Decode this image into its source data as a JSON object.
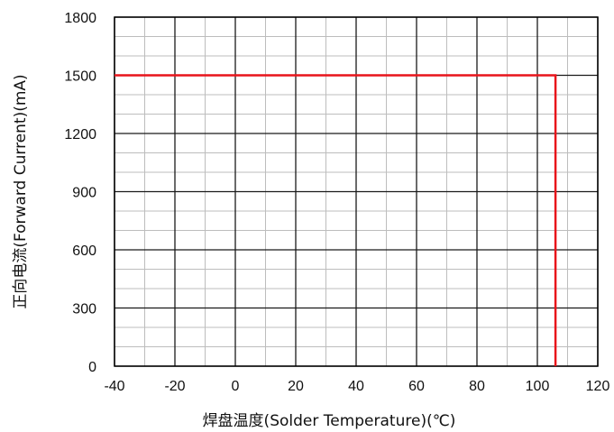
{
  "chart_data": {
    "type": "line",
    "xlabel": "焊盘温度(Solder Temperature)(℃)",
    "ylabel": "正向电流(Forward Current)(mA)",
    "xlim": [
      -40,
      120
    ],
    "ylim": [
      0,
      1800
    ],
    "x_ticks": [
      -40,
      -20,
      0,
      20,
      40,
      60,
      80,
      100,
      120
    ],
    "y_ticks": [
      0,
      300,
      600,
      900,
      1200,
      1500,
      1800
    ],
    "x_tick_labels": [
      "-40",
      "-20",
      "0",
      "20",
      "40",
      "60",
      "80",
      "100",
      "120"
    ],
    "y_tick_labels": [
      "0",
      "300",
      "600",
      "900",
      "1200",
      "1500",
      "1800"
    ],
    "grid": true,
    "x_minor_step": 10,
    "y_minor_step": 100,
    "series": [
      {
        "color": "#e8141b",
        "x": [
          -40,
          106,
          106
        ],
        "y": [
          1500,
          1500,
          0
        ]
      }
    ]
  }
}
